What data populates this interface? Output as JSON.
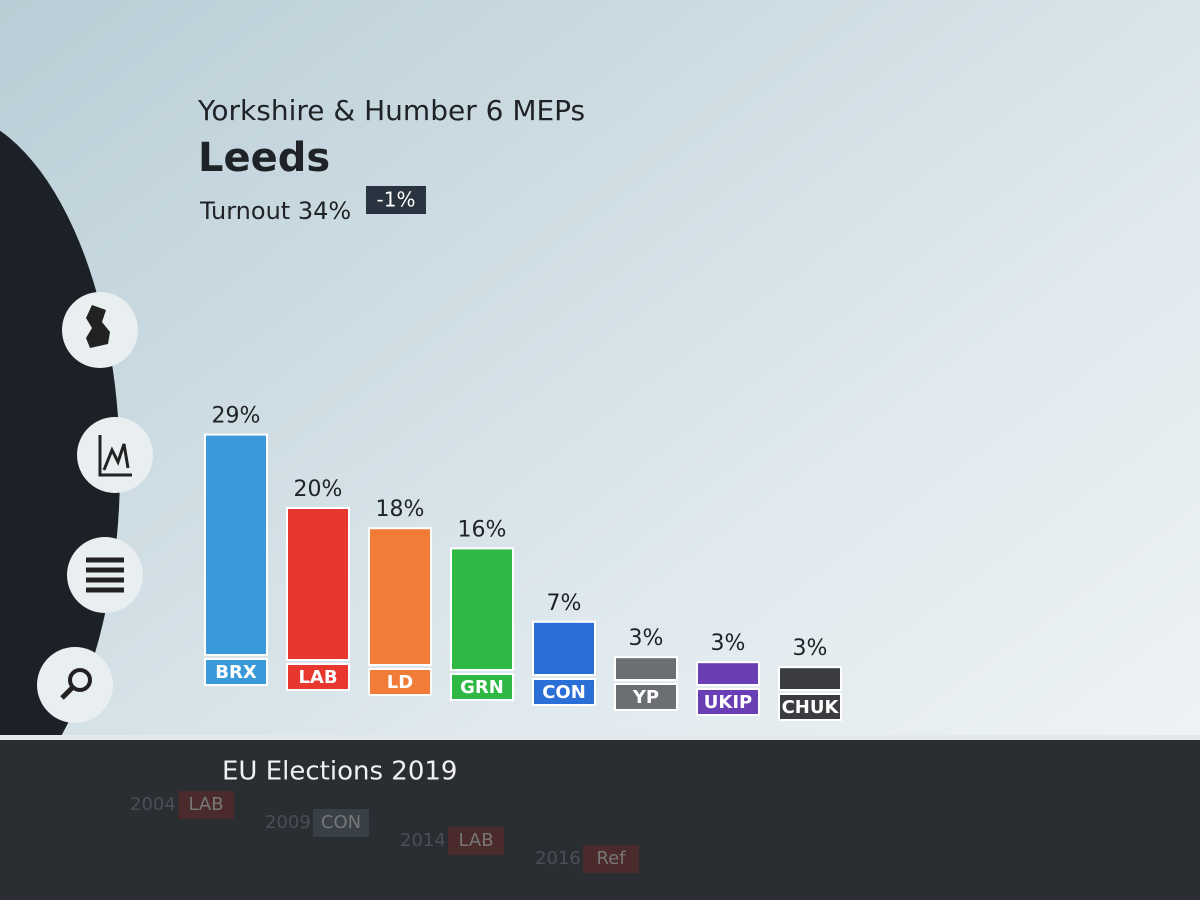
{
  "chart_data": {
    "type": "bar",
    "subtitle": "Yorkshire & Humber 6 MEPs",
    "title": "Leeds",
    "turnout": "Turnout 34%",
    "turnout_change": "-1%",
    "categories": [
      "BRX",
      "LAB",
      "LD",
      "GRN",
      "CON",
      "YP",
      "UKIP",
      "CHUK"
    ],
    "values": [
      29,
      20,
      18,
      16,
      7,
      3,
      3,
      3
    ],
    "value_labels": [
      "29%",
      "20%",
      "18%",
      "16%",
      "7%",
      "3%",
      "3%",
      "3%"
    ],
    "colors": [
      "#3a9ad9",
      "#e8372e",
      "#f07c37",
      "#2fb844",
      "#2a6fd6",
      "#6b6f73",
      "#6a3fb5",
      "#3a3c40"
    ],
    "footer": "EU Elections 2019",
    "ticker": [
      {
        "year": "2004",
        "party": "LAB"
      },
      {
        "year": "2009",
        "party": "CON"
      },
      {
        "year": "2014",
        "party": "LAB"
      },
      {
        "year": "2016",
        "party": "Ref"
      }
    ]
  }
}
